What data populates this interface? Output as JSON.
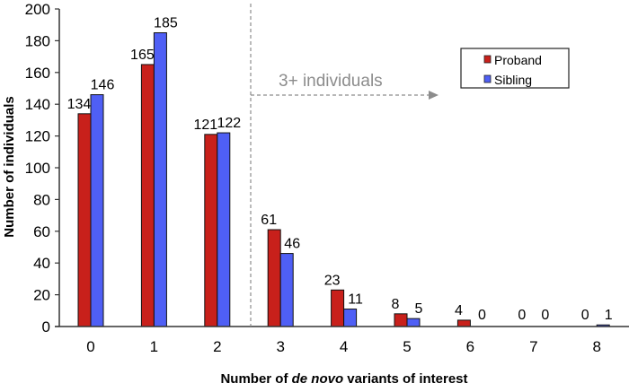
{
  "chart_data": {
    "type": "bar",
    "title": "",
    "xlabel_parts": [
      "Number of ",
      "de novo",
      " variants of interest"
    ],
    "ylabel": "Number of individuals",
    "categories": [
      "0",
      "1",
      "2",
      "3",
      "4",
      "5",
      "6",
      "7",
      "8"
    ],
    "ylim": [
      0,
      200
    ],
    "yticks": [
      0,
      20,
      40,
      60,
      80,
      100,
      120,
      140,
      160,
      180,
      200
    ],
    "grid": false,
    "legend_position": "top-right",
    "series": [
      {
        "name": "Proband",
        "color": "#c8201b",
        "values": [
          134,
          165,
          121,
          61,
          23,
          8,
          4,
          0,
          0
        ]
      },
      {
        "name": "Sibling",
        "color": "#4f5ff5",
        "values": [
          146,
          185,
          122,
          46,
          11,
          5,
          0,
          0,
          1
        ]
      }
    ],
    "annotation": {
      "text": "3+ individuals",
      "color": "#8c8c8c",
      "threshold_category": "3"
    }
  }
}
